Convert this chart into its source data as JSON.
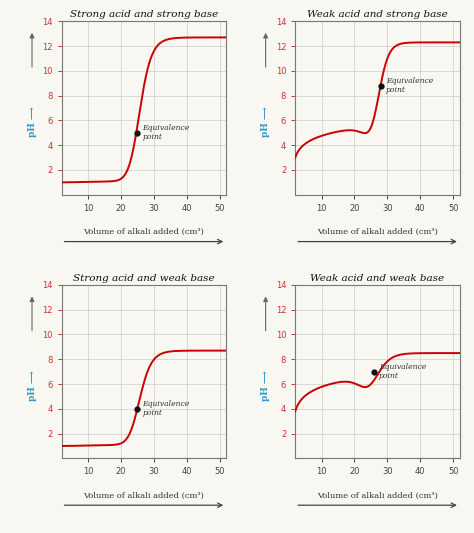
{
  "titles": [
    "Strong acid and strong base",
    "Weak acid and strong base",
    "Strong acid and weak base",
    "Weak acid and weak base"
  ],
  "eq_points": [
    [
      25,
      5.0
    ],
    [
      28,
      8.8
    ],
    [
      25,
      4.0
    ],
    [
      26,
      7.0
    ]
  ],
  "curve_color": "#cc0000",
  "eq_label_color": "#333333",
  "title_color": "#111111",
  "ph_label_color": "#3399cc",
  "tick_color_y": "#cc3333",
  "tick_color_x": "#444444",
  "grid_color": "#cccccc",
  "bg_color": "#f8f7f2",
  "ylim": [
    0,
    14
  ],
  "xlim": [
    2,
    52
  ],
  "yticks": [
    2,
    4,
    6,
    8,
    10,
    12,
    14
  ],
  "xticks": [
    10,
    20,
    30,
    40,
    50
  ]
}
